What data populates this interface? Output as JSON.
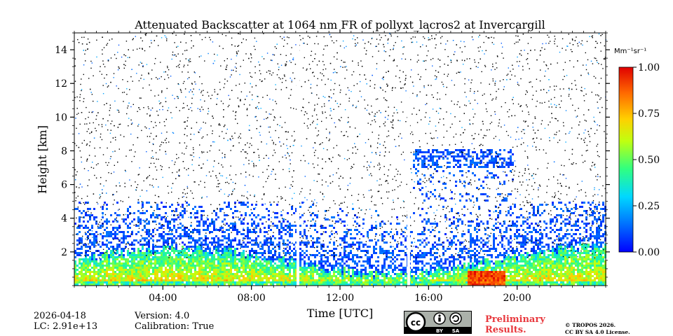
{
  "chart_data": {
    "type": "heatmap",
    "title": "Attenuated Backscatter at 1064 nm FR of pollyxt_lacros2 at Invercargill",
    "xlabel": "Time [UTC]",
    "ylabel": "Height [km]",
    "x_ticks": [
      "04:00",
      "08:00",
      "12:00",
      "16:00",
      "20:00"
    ],
    "x_tick_hours": [
      4,
      8,
      12,
      16,
      20
    ],
    "xlim_hours": [
      0,
      24
    ],
    "y_ticks": [
      2,
      4,
      6,
      8,
      10,
      12,
      14
    ],
    "ylim": [
      0,
      15
    ],
    "colorbar": {
      "unit": "Mm⁻¹sr⁻¹",
      "ticks": [
        "0.00",
        "0.25",
        "0.50",
        "0.75",
        "1.00"
      ],
      "tick_values": [
        0,
        0.25,
        0.5,
        0.75,
        1.0
      ],
      "range": [
        0,
        1
      ]
    },
    "data_gaps_hours": [
      10.1,
      15.1
    ]
  },
  "footer": {
    "date": "2026-04-18",
    "lc": "LC: 2.91e+13",
    "version": "Version: 4.0",
    "calibration": "Calibration: True",
    "preliminary_line1": "Preliminary",
    "preliminary_line2": "Results.",
    "copyright_line1": "© TROPOS 2026.",
    "copyright_line2": "CC BY SA 4.0 License.",
    "license_badge": [
      "BY",
      "SA"
    ]
  }
}
